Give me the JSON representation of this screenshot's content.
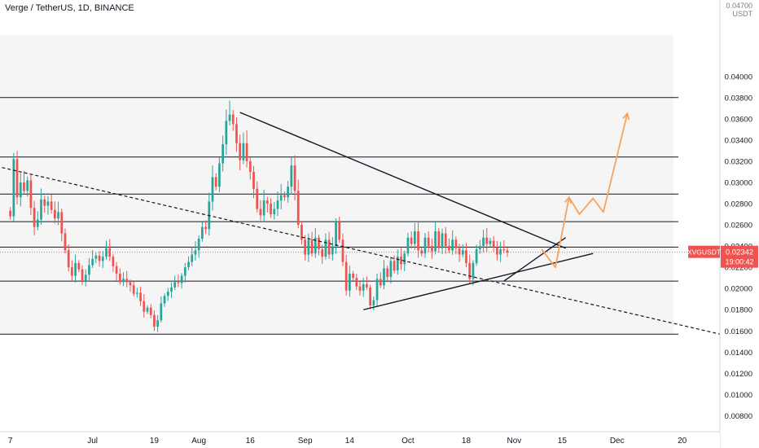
{
  "header": {
    "title": "Verge / TetherUS, 1D, BINANCE",
    "currency_top": "0.04700",
    "currency_unit": "USDT"
  },
  "price_tag": {
    "symbol": "XVGUSDT",
    "price": "0.02342",
    "countdown": "19:00:42",
    "color": "#ef5350"
  },
  "colors": {
    "up": "#26a69a",
    "down": "#ef5350",
    "projection": "#f7a35c",
    "band": "#f5f5f5",
    "line": "#131722"
  },
  "chart_data": {
    "type": "candlestick",
    "title": "Verge / TetherUS, 1D, BINANCE",
    "y_axis": {
      "min": 0.0065,
      "max": 0.0472,
      "ticks": [
        "0.00800",
        "0.01000",
        "0.01200",
        "0.01400",
        "0.01600",
        "0.01800",
        "0.02000",
        "0.02200",
        "0.02400",
        "0.02600",
        "0.02800",
        "0.03000",
        "0.03200",
        "0.03400",
        "0.03600",
        "0.03800",
        "0.04000"
      ],
      "tick_values": [
        0.008,
        0.01,
        0.012,
        0.014,
        0.016,
        0.018,
        0.02,
        0.022,
        0.024,
        0.026,
        0.028,
        0.03,
        0.032,
        0.034,
        0.036,
        0.038,
        0.04
      ]
    },
    "x_axis": {
      "start": "2021-06-04",
      "end": "2021-12-31",
      "ticks": [
        {
          "label": "7",
          "date": "2021-06-07"
        },
        {
          "label": "Jul",
          "date": "2021-07-01"
        },
        {
          "label": "19",
          "date": "2021-07-19"
        },
        {
          "label": "Aug",
          "date": "2021-08-01"
        },
        {
          "label": "16",
          "date": "2021-08-16"
        },
        {
          "label": "Sep",
          "date": "2021-09-01"
        },
        {
          "label": "14",
          "date": "2021-09-14"
        },
        {
          "label": "Oct",
          "date": "2021-10-01"
        },
        {
          "label": "18",
          "date": "2021-10-18"
        },
        {
          "label": "Nov",
          "date": "2021-11-01"
        },
        {
          "label": "15",
          "date": "2021-11-15"
        },
        {
          "label": "Dec",
          "date": "2021-12-01"
        },
        {
          "label": "20",
          "date": "2021-12-20"
        }
      ]
    },
    "candles_start": "2021-06-07",
    "closes": [
      0.0268,
      0.0322,
      0.0286,
      0.03,
      0.0292,
      0.0302,
      0.0276,
      0.0258,
      0.0265,
      0.0284,
      0.0278,
      0.0282,
      0.0274,
      0.0266,
      0.0272,
      0.0252,
      0.0236,
      0.022,
      0.0212,
      0.0224,
      0.0218,
      0.0207,
      0.0213,
      0.0222,
      0.0228,
      0.0231,
      0.0226,
      0.023,
      0.0238,
      0.023,
      0.0221,
      0.0214,
      0.0206,
      0.0209,
      0.0206,
      0.0203,
      0.0195,
      0.0196,
      0.0188,
      0.0178,
      0.0182,
      0.0175,
      0.0164,
      0.017,
      0.0186,
      0.0193,
      0.0197,
      0.0201,
      0.0206,
      0.0205,
      0.0212,
      0.022,
      0.0225,
      0.0232,
      0.0236,
      0.0247,
      0.0258,
      0.0256,
      0.0282,
      0.0305,
      0.0296,
      0.0318,
      0.0336,
      0.0358,
      0.0364,
      0.0355,
      0.0337,
      0.0321,
      0.0337,
      0.032,
      0.031,
      0.0294,
      0.0275,
      0.0269,
      0.0283,
      0.028,
      0.027,
      0.0275,
      0.0283,
      0.0288,
      0.0286,
      0.0296,
      0.0316,
      0.0292,
      0.026,
      0.0246,
      0.0232,
      0.0246,
      0.0233,
      0.0248,
      0.0237,
      0.023,
      0.0246,
      0.0232,
      0.024,
      0.0263,
      0.0246,
      0.0225,
      0.0198,
      0.0214,
      0.021,
      0.0202,
      0.0198,
      0.0204,
      0.0201,
      0.0184,
      0.0189,
      0.0209,
      0.0203,
      0.0219,
      0.0211,
      0.0226,
      0.0217,
      0.023,
      0.0223,
      0.0233,
      0.0248,
      0.0242,
      0.0254,
      0.0236,
      0.0233,
      0.0248,
      0.024,
      0.0235,
      0.0254,
      0.0238,
      0.0252,
      0.024,
      0.0236,
      0.0246,
      0.0238,
      0.0232,
      0.0236,
      0.0224,
      0.0209,
      0.0224,
      0.0237,
      0.024,
      0.0248,
      0.0242,
      0.0245,
      0.0239,
      0.0232,
      0.0237,
      0.0236,
      0.0234
    ],
    "horizontal_levels": [
      0.0157,
      0.0207,
      0.0239,
      0.0263,
      0.0289,
      0.0324,
      0.038
    ],
    "band": [
      0.0157,
      0.038
    ],
    "trendlines": [
      {
        "style": "dashed",
        "from": [
          "2021-05-21",
          0.0325
        ],
        "to": [
          "2021-12-31",
          0.0157
        ]
      },
      {
        "style": "solid",
        "from": [
          "2021-08-13",
          0.0366
        ],
        "to": [
          "2021-11-16",
          0.0238
        ]
      },
      {
        "style": "solid",
        "from": [
          "2021-09-18",
          0.018
        ],
        "to": [
          "2021-11-24",
          0.0233
        ]
      },
      {
        "style": "solid",
        "from": [
          "2021-10-29",
          0.0207
        ],
        "to": [
          "2021-11-16",
          0.0248
        ]
      }
    ],
    "projection": [
      [
        "2021-11-09",
        0.0237
      ],
      [
        "2021-11-13",
        0.022
      ],
      [
        "2021-11-17",
        0.0286
      ],
      [
        "2021-11-20",
        0.027
      ],
      [
        "2021-11-24",
        0.0285
      ],
      [
        "2021-11-27",
        0.0272
      ],
      [
        "2021-12-04",
        0.0365
      ]
    ],
    "last_price": 0.02342
  }
}
